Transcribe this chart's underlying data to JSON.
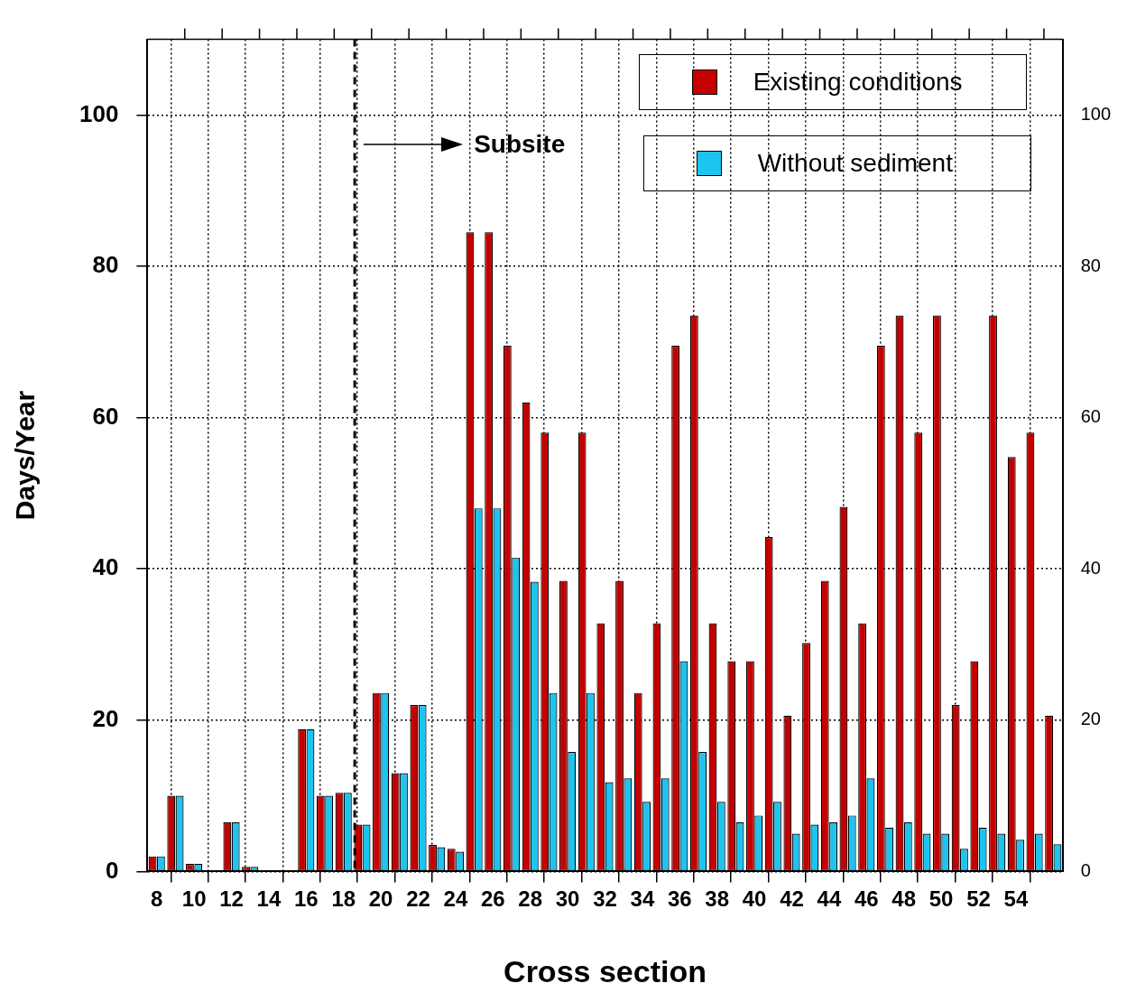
{
  "chart_data": {
    "type": "bar",
    "xlabel": "Cross section",
    "ylabel": "Days/Year",
    "x": [
      8,
      9,
      10,
      11,
      12,
      13,
      14,
      15,
      16,
      17,
      18,
      19,
      20,
      21,
      22,
      23,
      24,
      25,
      26,
      27,
      28,
      29,
      30,
      31,
      32,
      33,
      34,
      35,
      36,
      37,
      38,
      39,
      40,
      41,
      42,
      43,
      44,
      45,
      46,
      47,
      48,
      49,
      50,
      51,
      52,
      53,
      54,
      55,
      56
    ],
    "series": [
      {
        "name": "Existing conditions",
        "color": "#c40000",
        "values": [
          2,
          10,
          1,
          0,
          6.5,
          0.6,
          0,
          0,
          18.8,
          10,
          10.4,
          6.2,
          23.6,
          13,
          22,
          3.5,
          3,
          84.5,
          84.5,
          69.5,
          62,
          58,
          38.4,
          58,
          32.8,
          38.4,
          23.6,
          32.8,
          69.5,
          73.5,
          32.8,
          27.8,
          27.8,
          44.2,
          20.6,
          30.2,
          38.4,
          48.2,
          32.8,
          69.5,
          73.5,
          58,
          73.5,
          22,
          27.8,
          73.5,
          54.8,
          58,
          20.6
        ]
      },
      {
        "name": "Without sediment",
        "color": "#1ec4f0",
        "values": [
          2,
          10,
          1,
          0,
          6.5,
          0.6,
          0,
          0,
          18.8,
          10,
          10.4,
          6.2,
          23.6,
          13,
          22,
          3.2,
          2.6,
          48,
          48,
          41.5,
          38.3,
          23.6,
          15.8,
          23.6,
          11.8,
          12.3,
          9.2,
          12.3,
          27.8,
          15.8,
          9.2,
          6.5,
          7.4,
          9.2,
          5,
          6.2,
          6.5,
          7.4,
          12.3,
          5.8,
          6.5,
          5,
          5,
          3,
          5.8,
          5,
          4.2,
          5,
          3.6
        ]
      }
    ],
    "xlim": [
      7.5,
      56.5
    ],
    "xticks": [
      8,
      {
        "value": 9.5,
        "label": null
      },
      10,
      {
        "value": 11.5,
        "label": null
      },
      12,
      {
        "value": 13.5,
        "label": null
      },
      14,
      {
        "value": 15.5,
        "label": null
      },
      16,
      {
        "value": 17.5,
        "label": null
      },
      18,
      {
        "value": 19.5,
        "label": null
      },
      20,
      {
        "value": 21.5,
        "label": null
      },
      22,
      {
        "value": 23.5,
        "label": null
      },
      24,
      {
        "value": 25.5,
        "label": null
      },
      26,
      {
        "value": 27.5,
        "label": null
      },
      28,
      {
        "value": 29.5,
        "label": null
      },
      30,
      {
        "value": 31.5,
        "label": null
      },
      32,
      {
        "value": 33.5,
        "label": null
      },
      34,
      {
        "value": 35.5,
        "label": null
      },
      36,
      {
        "value": 37.5,
        "label": null
      },
      38,
      {
        "value": 39.5,
        "label": null
      },
      40,
      {
        "value": 41.5,
        "label": null
      },
      42,
      {
        "value": 43.5,
        "label": null
      },
      44,
      {
        "value": 45.5,
        "label": null
      },
      46,
      {
        "value": 47.5,
        "label": null
      },
      48,
      {
        "value": 49.5,
        "label": null
      },
      50,
      {
        "value": 51.5,
        "label": null
      },
      52,
      {
        "value": 53.5,
        "label": null
      },
      54,
      {
        "value": 55.5,
        "label": null
      }
    ],
    "ylim": [
      0,
      110
    ],
    "yticks": [
      0,
      20,
      40,
      60,
      80,
      100
    ],
    "y2lim": [
      0,
      110
    ],
    "y2ticks": [
      0,
      20,
      40,
      60,
      80,
      100
    ],
    "ref_lines": [
      {
        "axis": "x",
        "value": 18.6,
        "line_style": "dashed",
        "color": "#000000"
      }
    ],
    "annotations": [
      "Subsite"
    ],
    "grid": true,
    "legend": "top right"
  }
}
